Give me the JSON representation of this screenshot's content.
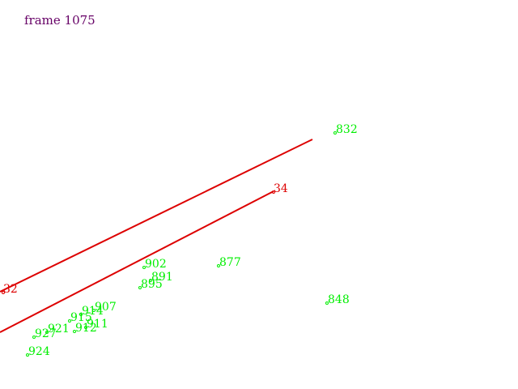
{
  "frame_label": "frame 1075",
  "colors": {
    "frame_label": "#660066",
    "track": "#dd0000",
    "point": "#00ee00",
    "background": "#ffffff"
  },
  "tracks": [
    {
      "id": "32",
      "label": "32"
    },
    {
      "id": "34",
      "label": "34"
    }
  ],
  "points": [
    {
      "id": "832",
      "label": "832"
    },
    {
      "id": "902",
      "label": "902"
    },
    {
      "id": "877",
      "label": "877"
    },
    {
      "id": "891",
      "label": "891"
    },
    {
      "id": "895",
      "label": "895"
    },
    {
      "id": "848",
      "label": "848"
    },
    {
      "id": "907",
      "label": "907"
    },
    {
      "id": "914",
      "label": "914"
    },
    {
      "id": "915",
      "label": "915"
    },
    {
      "id": "911",
      "label": "911"
    },
    {
      "id": "912",
      "label": "912"
    },
    {
      "id": "921",
      "label": "921"
    },
    {
      "id": "927",
      "label": "927"
    },
    {
      "id": "924",
      "label": "924"
    }
  ]
}
